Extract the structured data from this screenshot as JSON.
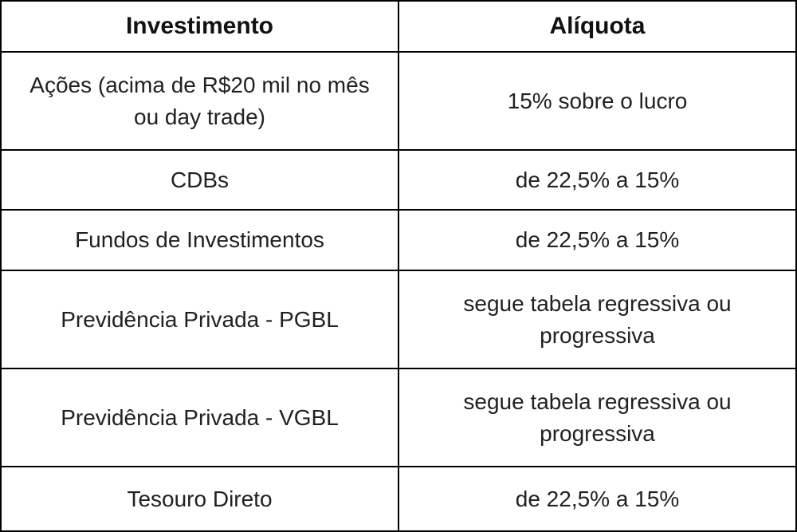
{
  "chart_data": {
    "type": "table",
    "title": "",
    "columns": [
      "Investimento",
      "Alíquota"
    ],
    "rows": [
      [
        "Ações (acima de R$20 mil no mês ou day trade)",
        "15% sobre o lucro"
      ],
      [
        "CDBs",
        "de 22,5% a 15%"
      ],
      [
        "Fundos de Investimentos",
        "de 22,5% a 15%"
      ],
      [
        "Previdência Privada - PGBL",
        "segue tabela regressiva ou progressiva"
      ],
      [
        "Previdência Privada - VGBL",
        "segue tabela regressiva ou progressiva"
      ],
      [
        "Tesouro Direto",
        "de 22,5% a 15%"
      ]
    ],
    "layout": {
      "grid": "on",
      "header_bold": true
    }
  },
  "colors": {
    "border": "#000000",
    "background": "#ffffff",
    "text": "#212121",
    "header_text": "#111111"
  },
  "table": {
    "header": {
      "investimento": "Investimento",
      "aliquota": "Alíquota"
    },
    "rows": [
      {
        "investimento": "Ações (acima de R$20 mil no mês ou day trade)",
        "aliquota": "15% sobre o lucro"
      },
      {
        "investimento": "CDBs",
        "aliquota": "de 22,5% a 15%"
      },
      {
        "investimento": "Fundos de Investimentos",
        "aliquota": "de 22,5% a 15%"
      },
      {
        "investimento": "Previdência Privada - PGBL",
        "aliquota": "segue tabela regressiva ou progressiva"
      },
      {
        "investimento": "Previdência Privada - VGBL",
        "aliquota": "segue tabela regressiva ou progressiva"
      },
      {
        "investimento": "Tesouro Direto",
        "aliquota": "de 22,5% a 15%"
      }
    ]
  }
}
